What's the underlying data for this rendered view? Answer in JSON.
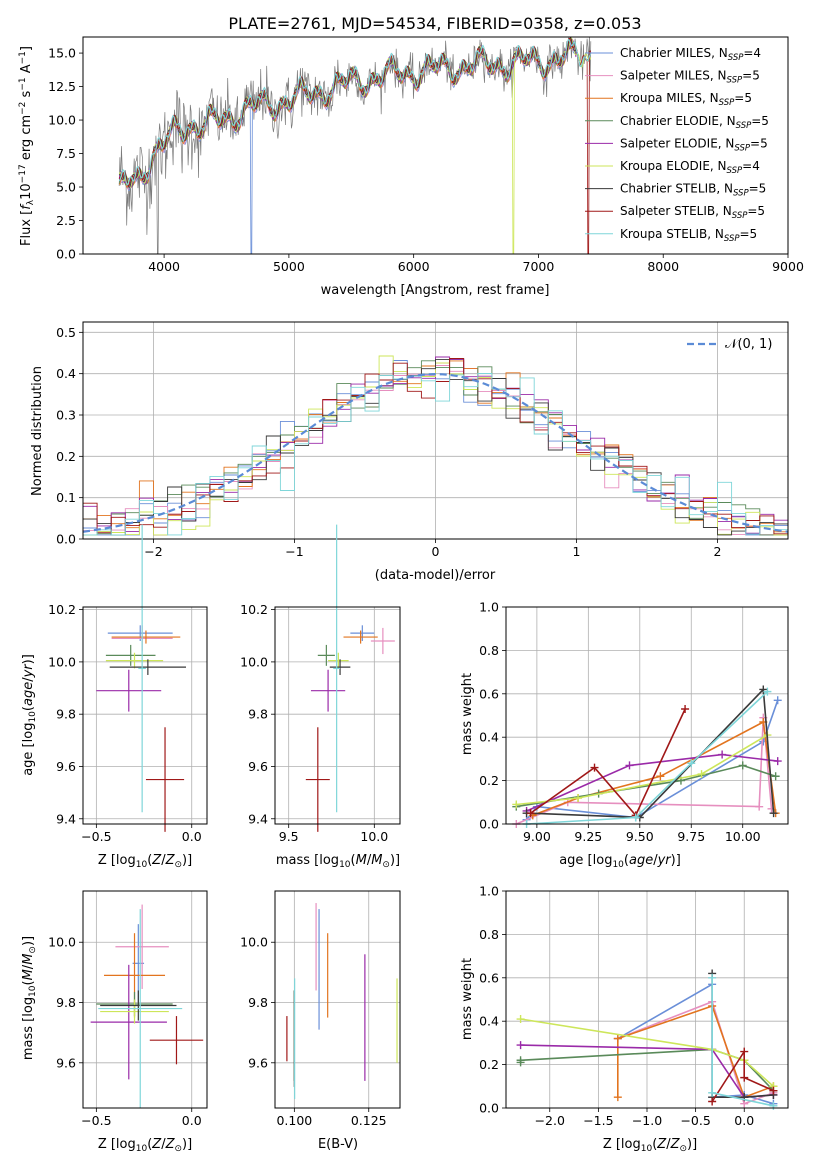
{
  "series_styles": [
    {
      "name": "Chabrier MILES",
      "nssp": "4",
      "color": "#6a8fd8"
    },
    {
      "name": "Salpeter MILES",
      "nssp": "5",
      "color": "#e68fbf"
    },
    {
      "name": "Kroupa MILES",
      "nssp": "5",
      "color": "#e2741f"
    },
    {
      "name": "Chabrier ELODIE",
      "nssp": "5",
      "color": "#5a8a5a"
    },
    {
      "name": "Salpeter ELODIE",
      "nssp": "5",
      "color": "#9a2aa8"
    },
    {
      "name": "Kroupa ELODIE",
      "nssp": "4",
      "color": "#cde65a"
    },
    {
      "name": "Chabrier STELIB",
      "nssp": "5",
      "color": "#3a3a3a"
    },
    {
      "name": "Salpeter STELIB",
      "nssp": "5",
      "color": "#a01818"
    },
    {
      "name": "Kroupa STELIB",
      "nssp": "5",
      "color": "#7fd6d9"
    }
  ],
  "chart_data": [
    {
      "id": "spectrum",
      "type": "line",
      "title": "PLATE=2761, MJD=54534, FIBERID=0358, z=0.053",
      "xlabel": "wavelength [Angstrom, rest frame]",
      "ylabel": "Flux [f_λ 10^-17 erg cm^-2 s^-1 A^-1]",
      "xlim": [
        3350,
        9000
      ],
      "ylim": [
        0,
        16.2
      ],
      "xticks": [
        4000,
        5000,
        6000,
        7000,
        8000,
        9000
      ],
      "yticks": [
        0.0,
        2.5,
        5.0,
        7.5,
        10.0,
        12.5,
        15.0
      ],
      "ytick_labels": [
        "0.0",
        "2.5",
        "5.0",
        "7.5",
        "10.0",
        "12.5",
        "15.0"
      ],
      "legend": "top-right",
      "data_range": [
        3640,
        7420
      ],
      "continuum": {
        "x": [
          3640,
          3700,
          3800,
          3900,
          4000,
          4100,
          4200,
          4300,
          4500,
          4700,
          4900,
          5100,
          5300,
          5500,
          5700,
          5900,
          6100,
          6300,
          6500,
          6700,
          6900,
          7100,
          7300,
          7420
        ],
        "y": [
          4.6,
          5.2,
          5.9,
          7.2,
          8.0,
          9.3,
          9.7,
          9.4,
          10.2,
          10.9,
          11.3,
          11.7,
          12.3,
          12.8,
          13.2,
          13.5,
          13.7,
          13.9,
          14.1,
          14.2,
          14.3,
          14.5,
          14.7,
          14.8
        ]
      }
    },
    {
      "id": "residuals",
      "type": "histogram",
      "xlabel": "(data-model)/error",
      "ylabel": "Normed distribution",
      "xlim": [
        -2.5,
        2.5
      ],
      "ylim": [
        0,
        0.525
      ],
      "xticks": [
        -2,
        -1,
        0,
        1,
        2
      ],
      "xtick_labels": [
        "−2",
        "−1",
        "0",
        "1",
        "2"
      ],
      "yticks": [
        0.0,
        0.1,
        0.2,
        0.3,
        0.4,
        0.5
      ],
      "ytick_labels": [
        "0.0",
        "0.1",
        "0.2",
        "0.3",
        "0.4",
        "0.5"
      ],
      "bin_width": 0.1,
      "reference_label": "𝒩(0, 1)",
      "legend": "top-right"
    },
    {
      "id": "age_vs_z",
      "type": "errorbar",
      "xlabel": "Z [log10(Z/Z⊙)]",
      "ylabel": "age [log10(age/yr)]",
      "xlim": [
        -0.57,
        0.08
      ],
      "ylim": [
        9.38,
        10.21
      ],
      "xticks": [
        -0.5,
        0.0
      ],
      "xtick_labels": [
        "−0.5",
        "0.0"
      ],
      "yticks": [
        9.4,
        9.6,
        9.8,
        10.0,
        10.2
      ],
      "ytick_labels": [
        "9.4",
        "9.6",
        "9.8",
        "10.0",
        "10.2"
      ],
      "points": [
        {
          "x": -0.27,
          "y": 10.11,
          "xerr": 0.17,
          "yerr": 0.03
        },
        {
          "x": -0.26,
          "y": 10.09,
          "xerr": 0.16,
          "yerr": 0.05
        },
        {
          "x": -0.24,
          "y": 10.095,
          "xerr": 0.18,
          "yerr": 0.025
        },
        {
          "x": -0.32,
          "y": 10.025,
          "xerr": 0.13,
          "yerr": 0.04
        },
        {
          "x": -0.33,
          "y": 9.89,
          "xerr": 0.17,
          "yerr": 0.08
        },
        {
          "x": -0.3,
          "y": 10.005,
          "xerr": 0.15,
          "yerr": 0.03
        },
        {
          "x": -0.23,
          "y": 9.98,
          "xerr": 0.2,
          "yerr": 0.03
        },
        {
          "x": -0.14,
          "y": 9.55,
          "xerr": 0.1,
          "yerr": 0.2
        },
        {
          "x": -0.26,
          "y": 9.975,
          "xerr": 0.02,
          "yerr": 0.55
        }
      ]
    },
    {
      "id": "age_vs_mass",
      "type": "errorbar",
      "xlabel": "mass [log10(M/M⊙)]",
      "ylabel": "",
      "xlim": [
        9.42,
        10.15
      ],
      "ylim": [
        9.38,
        10.21
      ],
      "xticks": [
        9.5,
        10.0
      ],
      "xtick_labels": [
        "9.5",
        "10.0"
      ],
      "yticks": [
        9.4,
        9.6,
        9.8,
        10.0,
        10.2
      ],
      "ytick_labels": [
        "9.4",
        "9.6",
        "9.8",
        "10.0",
        "10.2"
      ],
      "points": [
        {
          "x": 9.93,
          "y": 10.11,
          "xerr": 0.07,
          "yerr": 0.03
        },
        {
          "x": 10.05,
          "y": 10.08,
          "xerr": 0.07,
          "yerr": 0.05
        },
        {
          "x": 9.92,
          "y": 10.095,
          "xerr": 0.1,
          "yerr": 0.025
        },
        {
          "x": 9.72,
          "y": 10.025,
          "xerr": 0.05,
          "yerr": 0.04
        },
        {
          "x": 9.73,
          "y": 9.89,
          "xerr": 0.1,
          "yerr": 0.08
        },
        {
          "x": 9.79,
          "y": 10.005,
          "xerr": 0.06,
          "yerr": 0.03
        },
        {
          "x": 9.8,
          "y": 9.98,
          "xerr": 0.06,
          "yerr": 0.03
        },
        {
          "x": 9.67,
          "y": 9.55,
          "xerr": 0.07,
          "yerr": 0.2
        },
        {
          "x": 9.78,
          "y": 9.975,
          "xerr": 0.02,
          "yerr": 0.55
        }
      ]
    },
    {
      "id": "weight_vs_age",
      "type": "line",
      "xlabel": "age [log10(age/yr)]",
      "ylabel": "mass weight",
      "xlim": [
        8.85,
        10.22
      ],
      "ylim": [
        0,
        1.0
      ],
      "xticks": [
        9.0,
        9.25,
        9.5,
        9.75,
        10.0
      ],
      "xtick_labels": [
        "9.00",
        "9.25",
        "9.50",
        "9.75",
        "10.00"
      ],
      "yticks": [
        0.0,
        0.2,
        0.4,
        0.6,
        0.8,
        1.0
      ],
      "ytick_labels": [
        "0.0",
        "0.2",
        "0.4",
        "0.6",
        "0.8",
        "1.0"
      ],
      "series": [
        {
          "x": [
            8.95,
            9.0,
            9.48,
            10.1,
            10.17
          ],
          "y": [
            0.02,
            0.08,
            0.03,
            0.38,
            0.57
          ]
        },
        {
          "x": [
            8.9,
            9.15,
            10.08,
            10.1,
            10.14
          ],
          "y": [
            0.0,
            0.1,
            0.08,
            0.49,
            0.07
          ]
        },
        {
          "x": [
            8.98,
            9.2,
            9.6,
            10.1,
            10.16
          ],
          "y": [
            0.04,
            0.12,
            0.22,
            0.47,
            0.05
          ]
        },
        {
          "x": [
            8.9,
            9.3,
            9.7,
            10.0,
            10.16
          ],
          "y": [
            0.08,
            0.14,
            0.2,
            0.27,
            0.22
          ]
        },
        {
          "x": [
            8.95,
            9.45,
            9.9,
            10.17
          ],
          "y": [
            0.06,
            0.27,
            0.32,
            0.29
          ]
        },
        {
          "x": [
            8.9,
            9.2,
            9.8,
            10.12
          ],
          "y": [
            0.09,
            0.12,
            0.23,
            0.41
          ]
        },
        {
          "x": [
            8.95,
            9.5,
            10.1,
            10.15
          ],
          "y": [
            0.05,
            0.03,
            0.62,
            0.05
          ]
        },
        {
          "x": [
            8.97,
            9.28,
            9.48,
            9.72
          ],
          "y": [
            0.05,
            0.26,
            0.04,
            0.53
          ]
        },
        {
          "x": [
            8.95,
            9.48,
            9.75,
            10.12
          ],
          "y": [
            0.0,
            0.03,
            0.28,
            0.61
          ]
        }
      ]
    },
    {
      "id": "mass_vs_z",
      "type": "errorbar",
      "xlabel": "Z [log10(Z/Z⊙)]",
      "ylabel": "mass [log10(M/M⊙)]",
      "xlim": [
        -0.57,
        0.08
      ],
      "ylim": [
        9.45,
        10.17
      ],
      "xticks": [
        -0.5,
        0.0
      ],
      "xtick_labels": [
        "−0.5",
        "0.0"
      ],
      "yticks": [
        9.6,
        9.8,
        10.0
      ],
      "ytick_labels": [
        "9.6",
        "9.8",
        "10.0"
      ],
      "points": [
        {
          "x": -0.28,
          "y": 9.93,
          "xerr": 0.03,
          "yerr": 0.13
        },
        {
          "x": -0.26,
          "y": 9.985,
          "xerr": 0.14,
          "yerr": 0.14
        },
        {
          "x": -0.3,
          "y": 9.89,
          "xerr": 0.16,
          "yerr": 0.14
        },
        {
          "x": -0.3,
          "y": 9.795,
          "xerr": 0.2,
          "yerr": 0.04
        },
        {
          "x": -0.33,
          "y": 9.735,
          "xerr": 0.2,
          "yerr": 0.19
        },
        {
          "x": -0.3,
          "y": 9.77,
          "xerr": 0.18,
          "yerr": 0.04
        },
        {
          "x": -0.28,
          "y": 9.79,
          "xerr": 0.2,
          "yerr": 0.05
        },
        {
          "x": -0.08,
          "y": 9.675,
          "xerr": 0.14,
          "yerr": 0.08
        },
        {
          "x": -0.27,
          "y": 9.78,
          "xerr": 0.22,
          "yerr": 0.33
        }
      ]
    },
    {
      "id": "mass_vs_ebv",
      "type": "errorbar",
      "xlabel": "E(B-V)",
      "ylabel": "",
      "xlim": [
        0.0935,
        0.1355
      ],
      "ylim": [
        9.45,
        10.17
      ],
      "xticks": [
        0.1,
        0.125
      ],
      "xtick_labels": [
        "0.100",
        "0.125"
      ],
      "yticks": [
        9.6,
        9.8,
        10.0
      ],
      "ytick_labels": [
        "9.6",
        "9.8",
        "10.0"
      ],
      "points": [
        {
          "x": 0.1083,
          "y": 9.91,
          "yerr": 0.2
        },
        {
          "x": 0.1073,
          "y": 9.985,
          "yerr": 0.145
        },
        {
          "x": 0.1112,
          "y": 9.89,
          "yerr": 0.14
        },
        {
          "x": 0.1,
          "y": 9.69,
          "yerr": 0.15
        },
        {
          "x": 0.1237,
          "y": 9.75,
          "yerr": 0.21
        },
        {
          "x": 0.1345,
          "y": 9.74,
          "yerr": 0.14
        },
        {
          "x": 0.1,
          "y": 9.68,
          "yerr": 0.16
        },
        {
          "x": 0.0975,
          "y": 9.68,
          "yerr": 0.075
        },
        {
          "x": 0.1001,
          "y": 9.68,
          "yerr": 0.2
        }
      ]
    },
    {
      "id": "weight_vs_z",
      "type": "line",
      "xlabel": "Z [log10(Z/Z⊙)]",
      "ylabel": "mass weight",
      "xlim": [
        -2.45,
        0.45
      ],
      "ylim": [
        0,
        1.0
      ],
      "xticks": [
        -2.0,
        -1.5,
        -1.0,
        -0.5,
        0.0
      ],
      "xtick_labels": [
        "−2.0",
        "−1.5",
        "−1.0",
        "−0.5",
        "0.0"
      ],
      "yticks": [
        0.0,
        0.2,
        0.4,
        0.6,
        0.8,
        1.0
      ],
      "ytick_labels": [
        "0.0",
        "0.2",
        "0.4",
        "0.6",
        "0.8",
        "1.0"
      ],
      "series": [
        {
          "x": [
            -1.3,
            -0.33,
            -0.33,
            0.0,
            0.3
          ],
          "y": [
            0.32,
            0.57,
            0.05,
            0.06,
            0.02
          ]
        },
        {
          "x": [
            -1.3,
            -0.33,
            0.0,
            0.3
          ],
          "y": [
            0.32,
            0.49,
            0.02,
            0.07
          ]
        },
        {
          "x": [
            -1.3,
            -1.3,
            -0.33,
            0.0,
            0.3
          ],
          "y": [
            0.05,
            0.32,
            0.47,
            0.05,
            0.1
          ]
        },
        {
          "x": [
            -2.3,
            -2.3,
            -0.33,
            0.0,
            0.3
          ],
          "y": [
            0.21,
            0.22,
            0.27,
            0.22,
            0.08
          ]
        },
        {
          "x": [
            -2.3,
            -0.33,
            0.0,
            0.3
          ],
          "y": [
            0.29,
            0.27,
            0.05,
            0.06
          ]
        },
        {
          "x": [
            -2.3,
            -0.33,
            0.0,
            0.3
          ],
          "y": [
            0.41,
            0.27,
            0.22,
            0.1
          ]
        },
        {
          "x": [
            -0.33,
            -0.33,
            0.0,
            0.3
          ],
          "y": [
            0.62,
            0.05,
            0.05,
            0.06
          ]
        },
        {
          "x": [
            -0.33,
            0.0,
            0.0,
            0.3
          ],
          "y": [
            0.03,
            0.26,
            0.14,
            0.08
          ]
        },
        {
          "x": [
            -0.33,
            -0.33,
            0.3
          ],
          "y": [
            0.6,
            0.07,
            0.01
          ]
        }
      ]
    }
  ]
}
